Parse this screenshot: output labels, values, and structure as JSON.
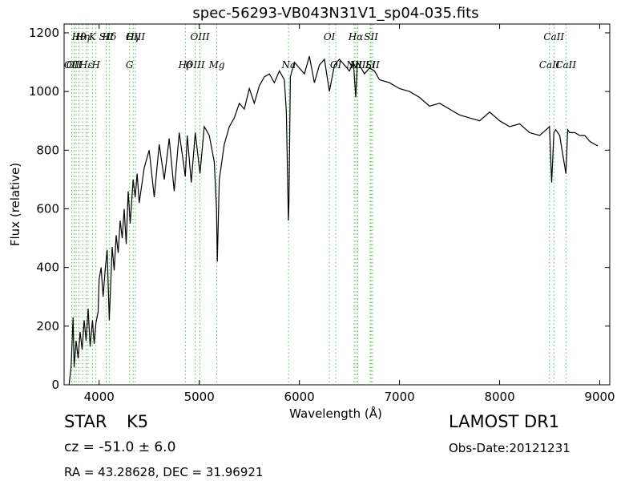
{
  "chart_data": {
    "type": "line",
    "title": "spec-56293-VB043N31V1_sp04-035.fits",
    "xlabel": "Wavelength (Å)",
    "ylabel": "Flux (relative)",
    "xlim": [
      3650,
      9100
    ],
    "ylim": [
      0,
      1230
    ],
    "xticks": [
      4000,
      5000,
      6000,
      7000,
      8000,
      9000
    ],
    "yticks": [
      0,
      200,
      400,
      600,
      800,
      1000,
      1200
    ],
    "grid": false,
    "line_color": "#000000",
    "marker_line_color": "#55bb55",
    "series": [
      {
        "x": [
          3700,
          3720,
          3740,
          3750,
          3770,
          3790,
          3810,
          3830,
          3850,
          3870,
          3890,
          3910,
          3933,
          3950,
          3968,
          3990,
          4000,
          4020,
          4040,
          4060,
          4080,
          4101,
          4130,
          4150,
          4170,
          4190,
          4210,
          4230,
          4250,
          4270,
          4290,
          4310,
          4340,
          4360,
          4380,
          4400,
          4450,
          4500,
          4550,
          4600,
          4650,
          4700,
          4750,
          4800,
          4861,
          4880,
          4920,
          4960,
          5007,
          5050,
          5100,
          5150,
          5172,
          5180,
          5200,
          5250,
          5300,
          5350,
          5400,
          5450,
          5500,
          5550,
          5600,
          5650,
          5700,
          5750,
          5800,
          5850,
          5870,
          5890,
          5896,
          5910,
          5950,
          6000,
          6050,
          6100,
          6150,
          6200,
          6250,
          6300,
          6350,
          6400,
          6450,
          6500,
          6540,
          6563,
          6580,
          6600,
          6650,
          6700,
          6750,
          6800,
          6900,
          7000,
          7100,
          7200,
          7300,
          7400,
          7500,
          7600,
          7700,
          7800,
          7900,
          8000,
          8100,
          8200,
          8300,
          8400,
          8498,
          8520,
          8542,
          8560,
          8600,
          8662,
          8680,
          8700,
          8750,
          8800,
          8850,
          8900,
          8950,
          8980
        ],
        "y": [
          0,
          60,
          230,
          60,
          150,
          90,
          180,
          120,
          220,
          150,
          260,
          130,
          220,
          140,
          210,
          250,
          360,
          400,
          300,
          390,
          460,
          220,
          470,
          390,
          510,
          450,
          560,
          500,
          600,
          480,
          660,
          550,
          700,
          640,
          720,
          620,
          740,
          800,
          640,
          820,
          700,
          840,
          660,
          860,
          710,
          850,
          690,
          860,
          720,
          880,
          850,
          760,
          600,
          420,
          700,
          820,
          880,
          910,
          960,
          940,
          1010,
          960,
          1020,
          1050,
          1060,
          1030,
          1070,
          1040,
          930,
          560,
          620,
          1050,
          1100,
          1080,
          1060,
          1120,
          1030,
          1090,
          1110,
          1000,
          1090,
          1110,
          1090,
          1070,
          1100,
          980,
          1100,
          1090,
          1060,
          1080,
          1070,
          1040,
          1030,
          1010,
          1000,
          980,
          950,
          960,
          940,
          920,
          910,
          900,
          930,
          900,
          880,
          890,
          860,
          850,
          880,
          690,
          860,
          870,
          850,
          720,
          870,
          860,
          860,
          850,
          850,
          830,
          820,
          815
        ]
      }
    ],
    "lines": [
      {
        "x": 3727,
        "upper": "",
        "lower": "OII"
      },
      {
        "x": 3750,
        "upper": "",
        "lower": "OII"
      },
      {
        "x": 3771,
        "upper": "",
        "lower": ""
      },
      {
        "x": 3798,
        "upper": "Hθ",
        "lower": ""
      },
      {
        "x": 3835,
        "upper": "Hη",
        "lower": ""
      },
      {
        "x": 3869,
        "upper": "",
        "lower": "Hε"
      },
      {
        "x": 3889,
        "upper": "",
        "lower": ""
      },
      {
        "x": 3933,
        "upper": "K",
        "lower": ""
      },
      {
        "x": 3968,
        "upper": "",
        "lower": "H"
      },
      {
        "x": 4070,
        "upper": "SII",
        "lower": ""
      },
      {
        "x": 4101,
        "upper": "Hδ",
        "lower": ""
      },
      {
        "x": 4304,
        "upper": "",
        "lower": "G"
      },
      {
        "x": 4340,
        "upper": "Hγ",
        "lower": ""
      },
      {
        "x": 4363,
        "upper": "OIII",
        "lower": ""
      },
      {
        "x": 4861,
        "upper": "",
        "lower": "Hβ"
      },
      {
        "x": 4959,
        "upper": "",
        "lower": "OIII"
      },
      {
        "x": 5007,
        "upper": "OIII",
        "lower": ""
      },
      {
        "x": 5175,
        "upper": "",
        "lower": "Mg"
      },
      {
        "x": 5893,
        "upper": "",
        "lower": "Na"
      },
      {
        "x": 6300,
        "upper": "OI",
        "lower": ""
      },
      {
        "x": 6364,
        "upper": "",
        "lower": "OI"
      },
      {
        "x": 6548,
        "upper": "",
        "lower": "NII"
      },
      {
        "x": 6563,
        "upper": "Hα",
        "lower": ""
      },
      {
        "x": 6583,
        "upper": "",
        "lower": "NII"
      },
      {
        "x": 6707,
        "upper": "",
        "lower": "Li"
      },
      {
        "x": 6716,
        "upper": "SII",
        "lower": ""
      },
      {
        "x": 6731,
        "upper": "",
        "lower": "SII"
      },
      {
        "x": 8498,
        "upper": "",
        "lower": "CaII"
      },
      {
        "x": 8542,
        "upper": "CaII",
        "lower": ""
      },
      {
        "x": 8662,
        "upper": "",
        "lower": "CaII"
      }
    ]
  },
  "info": {
    "class_label": "STAR",
    "subclass": "K5",
    "survey": "LAMOST DR1",
    "cz": "cz = -51.0 ± 6.0",
    "obs_date": "Obs-Date:20121231",
    "radec": "RA = 43.28628, DEC = 31.96921"
  }
}
